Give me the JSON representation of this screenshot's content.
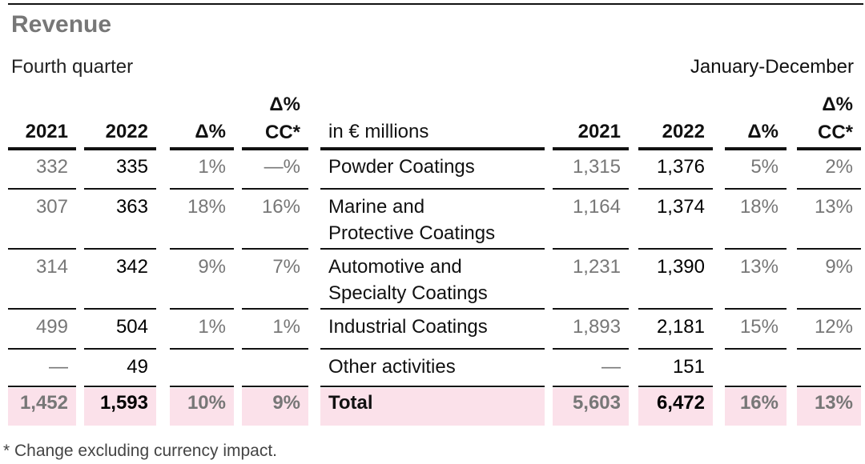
{
  "title": "Revenue",
  "left_caption": "Fourth quarter",
  "right_caption": "January-December",
  "columns": [
    "2021",
    "2022",
    "Δ%",
    "Δ%\nCC*",
    "in € millions",
    "2021",
    "2022",
    "Δ%",
    "Δ%\nCC*"
  ],
  "rows": [
    [
      "332",
      "335",
      "1%",
      "—%",
      "Powder Coatings",
      "1,315",
      "1,376",
      "5%",
      "2%"
    ],
    [
      "307",
      "363",
      "18%",
      "16%",
      "Marine and\nProtective Coatings",
      "1,164",
      "1,374",
      "18%",
      "13%"
    ],
    [
      "314",
      "342",
      "9%",
      "7%",
      "Automotive and\nSpecialty Coatings",
      "1,231",
      "1,390",
      "13%",
      "9%"
    ],
    [
      "499",
      "504",
      "1%",
      "1%",
      "Industrial Coatings",
      "1,893",
      "2,181",
      "15%",
      "12%"
    ],
    [
      "—",
      "49",
      null,
      null,
      "Other activities",
      "—",
      "151",
      null,
      null
    ],
    [
      "1,452",
      "1,593",
      "10%",
      "9%",
      "Total",
      "5,603",
      "6,472",
      "16%",
      "13%"
    ]
  ],
  "footnote": "* Change excluding currency impact."
}
